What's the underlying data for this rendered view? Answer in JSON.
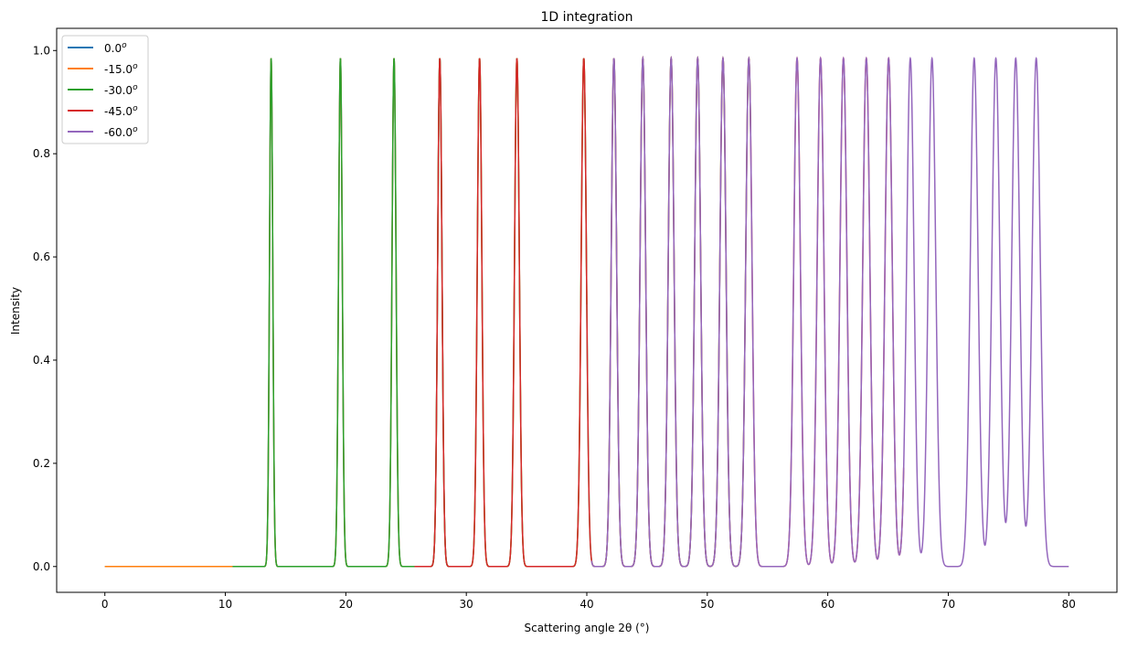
{
  "chart_data": {
    "type": "line",
    "title": "1D integration",
    "xlabel": "Scattering angle 2θ (°)",
    "ylabel": "Intensity",
    "xlim": [
      -4,
      84
    ],
    "ylim": [
      -0.05,
      1.043
    ],
    "xticks": [
      0,
      10,
      20,
      30,
      40,
      50,
      60,
      70,
      80
    ],
    "xtick_labels": [
      "0",
      "10",
      "20",
      "30",
      "40",
      "50",
      "60",
      "70",
      "80"
    ],
    "yticks": [
      0,
      0.2,
      0.4,
      0.6,
      0.8,
      1.0
    ],
    "ytick_labels": [
      "0.0",
      "0.2",
      "0.4",
      "0.6",
      "0.8",
      "1.0"
    ],
    "grid": false,
    "legend_position": "top-left",
    "peak_positions": [
      13.8,
      19.55,
      24.0,
      27.8,
      31.1,
      34.2,
      39.75,
      42.25,
      44.65,
      47.0,
      49.2,
      51.3,
      53.45,
      57.45,
      59.4,
      61.3,
      63.2,
      65.05,
      66.85,
      68.65,
      72.15,
      73.95,
      75.6,
      77.3
    ],
    "peak_height": 0.985,
    "series": [
      {
        "name": "0.0",
        "sup": "o",
        "color": "#1f77b4",
        "x_range": [
          0,
          28.5
        ]
      },
      {
        "name": "-15.0",
        "sup": "o",
        "color": "#ff7f0e",
        "x_range": [
          0,
          40
        ]
      },
      {
        "name": "-30.0",
        "sup": "o",
        "color": "#2ca02c",
        "x_range": [
          10.6,
          53.6
        ]
      },
      {
        "name": "-45.0",
        "sup": "o",
        "color": "#d62728",
        "x_range": [
          25.7,
          66.3
        ]
      },
      {
        "name": "-60.0",
        "sup": "o",
        "color": "#9467bd",
        "x_range": [
          40.4,
          80
        ]
      }
    ]
  }
}
